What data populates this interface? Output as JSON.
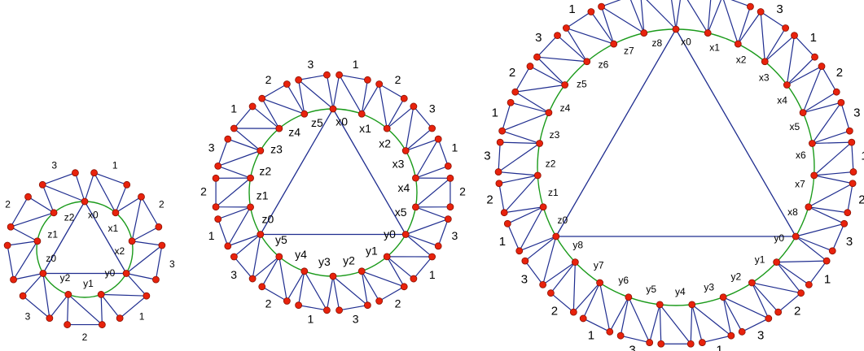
{
  "figures": [
    {
      "vertex_labels": [
        "x0",
        "x1",
        "x2",
        "y0",
        "y1",
        "y2",
        "z0",
        "z1",
        "z2"
      ],
      "spike_labels": [
        "1",
        "2",
        "3",
        "1",
        "2",
        "3",
        "1",
        "2",
        "3"
      ]
    },
    {
      "vertex_labels": [
        "x0",
        "x1",
        "x2",
        "x3",
        "x4",
        "x5",
        "y0",
        "y1",
        "y2",
        "y3",
        "y4",
        "y5",
        "z0",
        "z1",
        "z2",
        "z3",
        "z4",
        "z5"
      ],
      "spike_labels": [
        "1",
        "2",
        "3",
        "1",
        "2",
        "3",
        "1",
        "2",
        "3",
        "1",
        "2",
        "3",
        "1",
        "2",
        "3",
        "1",
        "2",
        "3"
      ]
    },
    {
      "vertex_labels": [
        "x0",
        "x1",
        "x2",
        "x3",
        "x4",
        "x5",
        "x6",
        "x7",
        "x8",
        "y0",
        "y1",
        "y2",
        "y3",
        "y4",
        "y5",
        "y6",
        "y7",
        "y8",
        "z0",
        "z1",
        "z2",
        "z3",
        "z4",
        "z5",
        "z6",
        "z7",
        "z8"
      ],
      "spike_labels": [
        "1",
        "2",
        "3",
        "1",
        "2",
        "3",
        "1",
        "2",
        "3",
        "1",
        "2",
        "3",
        "1",
        "2",
        "3",
        "1",
        "2",
        "3",
        "1",
        "2",
        "3",
        "1",
        "2",
        "3",
        "1",
        "2",
        "3"
      ]
    }
  ],
  "colors": {
    "circle": "#1a9a1a",
    "edge": "#1f2d8f",
    "vertex_fill": "#e8220c",
    "vertex_stroke": "#8a1000",
    "text": "#000000"
  }
}
